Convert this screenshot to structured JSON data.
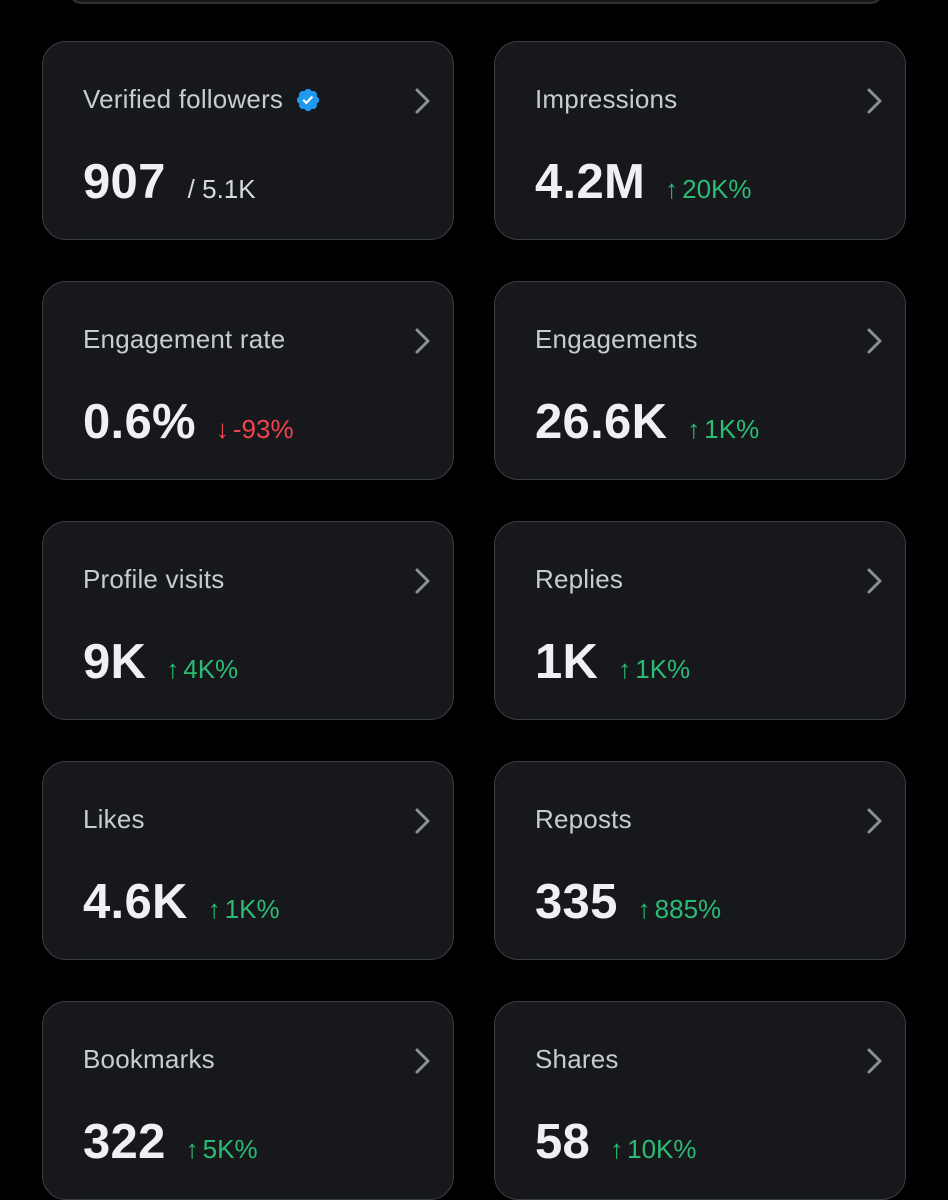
{
  "colors": {
    "background": "#000000",
    "card": "#16181c",
    "card_border": "#3a3d42",
    "title": "#c8ccd0",
    "value": "#eef0f2",
    "up": "#2bbb74",
    "down": "#f0444e",
    "verified": "#1d9bf0"
  },
  "cards": [
    {
      "title": "Verified followers",
      "value": "907",
      "sub": "/ 5.1K",
      "verified_icon": "verified-badge-icon"
    },
    {
      "title": "Impressions",
      "value": "4.2M",
      "change": {
        "direction": "up",
        "arrow": "↑",
        "text": "20K%"
      }
    },
    {
      "title": "Engagement rate",
      "value": "0.6%",
      "change": {
        "direction": "down",
        "arrow": "↓",
        "text": "-93%"
      }
    },
    {
      "title": "Engagements",
      "value": "26.6K",
      "change": {
        "direction": "up",
        "arrow": "↑",
        "text": "1K%"
      }
    },
    {
      "title": "Profile visits",
      "value": "9K",
      "change": {
        "direction": "up",
        "arrow": "↑",
        "text": "4K%"
      }
    },
    {
      "title": "Replies",
      "value": "1K",
      "change": {
        "direction": "up",
        "arrow": "↑",
        "text": "1K%"
      }
    },
    {
      "title": "Likes",
      "value": "4.6K",
      "change": {
        "direction": "up",
        "arrow": "↑",
        "text": "1K%"
      }
    },
    {
      "title": "Reposts",
      "value": "335",
      "change": {
        "direction": "up",
        "arrow": "↑",
        "text": "885%"
      }
    },
    {
      "title": "Bookmarks",
      "value": "322",
      "change": {
        "direction": "up",
        "arrow": "↑",
        "text": "5K%"
      }
    },
    {
      "title": "Shares",
      "value": "58",
      "change": {
        "direction": "up",
        "arrow": "↑",
        "text": "10K%"
      }
    }
  ]
}
